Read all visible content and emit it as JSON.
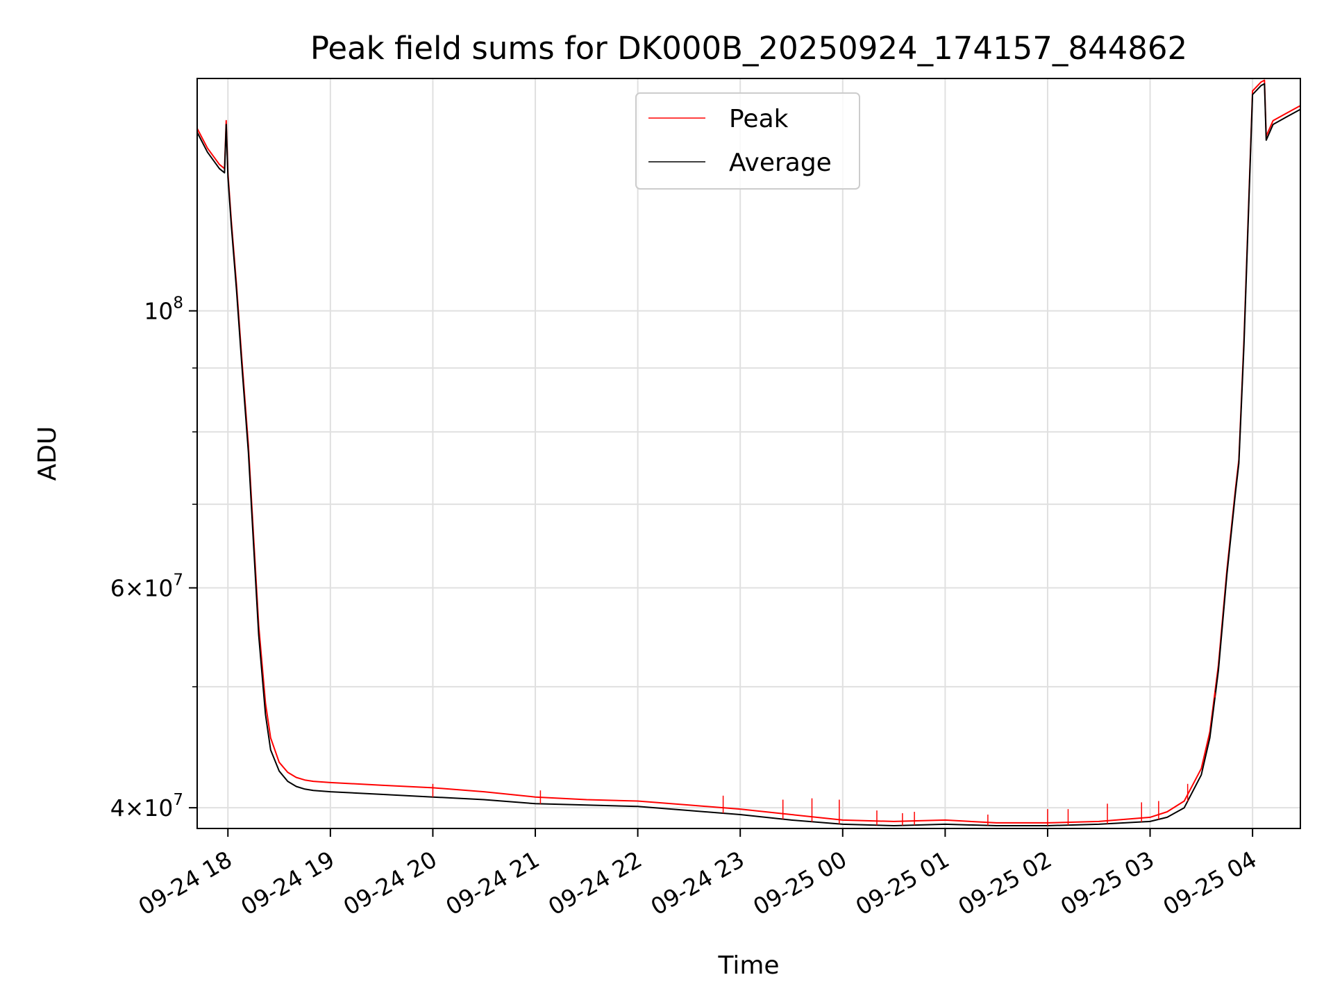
{
  "chart_data": {
    "type": "line",
    "title": "Peak field sums for DK000B_20250924_174157_844862",
    "xlabel": "Time",
    "ylabel": "ADU",
    "yscale": "log",
    "ylim": [
      38500000,
      153500000
    ],
    "xlim": [
      "2025-09-24 17:42",
      "2025-09-25 04:28"
    ],
    "grid": true,
    "legend_position": "upper center",
    "x_ticks": [
      "2025-09-24 18:00",
      "2025-09-24 19:00",
      "2025-09-24 20:00",
      "2025-09-24 21:00",
      "2025-09-24 22:00",
      "2025-09-24 23:00",
      "2025-09-25 00:00",
      "2025-09-25 01:00",
      "2025-09-25 02:00",
      "2025-09-25 03:00",
      "2025-09-25 04:00"
    ],
    "x_tick_labels": [
      "09-24 18",
      "09-24 19",
      "09-24 20",
      "09-24 21",
      "09-24 22",
      "09-24 23",
      "09-25 00",
      "09-25 01",
      "09-25 02",
      "09-25 03",
      "09-25 04"
    ],
    "y_major_ticks": [
      {
        "value": 40000000,
        "mantissa": "4",
        "exp": "7"
      },
      {
        "value": 60000000,
        "mantissa": "6",
        "exp": "7"
      },
      {
        "value": 100000000,
        "mantissa": "",
        "exp": "8"
      }
    ],
    "y_minor_ticks": [
      50000000,
      70000000,
      80000000,
      90000000
    ],
    "series": [
      {
        "name": "Peak",
        "color": "#ff0000",
        "x": [
          "2025-09-24 17:42",
          "2025-09-24 17:48",
          "2025-09-24 17:55",
          "2025-09-24 17:58",
          "2025-09-24 17:59",
          "2025-09-24 18:00",
          "2025-09-24 18:02",
          "2025-09-24 18:05",
          "2025-09-24 18:08",
          "2025-09-24 18:12",
          "2025-09-24 18:15",
          "2025-09-24 18:18",
          "2025-09-24 18:22",
          "2025-09-24 18:25",
          "2025-09-24 18:30",
          "2025-09-24 18:35",
          "2025-09-24 18:40",
          "2025-09-24 18:45",
          "2025-09-24 18:50",
          "2025-09-24 19:00",
          "2025-09-24 19:30",
          "2025-09-24 20:00",
          "2025-09-24 20:30",
          "2025-09-24 21:00",
          "2025-09-24 21:30",
          "2025-09-24 22:00",
          "2025-09-24 22:30",
          "2025-09-24 23:00",
          "2025-09-24 23:30",
          "2025-09-25 00:00",
          "2025-09-25 00:30",
          "2025-09-25 01:00",
          "2025-09-25 01:30",
          "2025-09-25 02:00",
          "2025-09-25 02:30",
          "2025-09-25 03:00",
          "2025-09-25 03:10",
          "2025-09-25 03:20",
          "2025-09-25 03:30",
          "2025-09-25 03:35",
          "2025-09-25 03:40",
          "2025-09-25 03:45",
          "2025-09-25 03:50",
          "2025-09-25 03:52",
          "2025-09-25 03:55",
          "2025-09-25 03:58",
          "2025-09-25 04:00",
          "2025-09-25 04:05",
          "2025-09-25 04:07",
          "2025-09-25 04:08",
          "2025-09-25 04:12",
          "2025-09-25 04:20",
          "2025-09-25 04:28"
        ],
        "y": [
          140000000,
          135000000,
          131000000,
          130000000,
          142000000,
          129000000,
          118000000,
          105000000,
          92000000,
          78000000,
          66000000,
          56000000,
          48500000,
          45500000,
          43500000,
          42700000,
          42300000,
          42100000,
          42000000,
          41900000,
          41700000,
          41500000,
          41200000,
          40800000,
          40600000,
          40500000,
          40200000,
          39900000,
          39500000,
          39100000,
          39000000,
          39100000,
          38900000,
          38900000,
          39000000,
          39300000,
          39700000,
          40500000,
          43000000,
          46000000,
          52000000,
          62000000,
          72000000,
          76000000,
          95000000,
          125000000,
          150000000,
          152500000,
          153000000,
          138000000,
          142000000,
          144000000,
          146000000
        ]
      },
      {
        "name": "Average",
        "color": "#000000",
        "x": [
          "2025-09-24 17:42",
          "2025-09-24 17:48",
          "2025-09-24 17:55",
          "2025-09-24 17:58",
          "2025-09-24 17:59",
          "2025-09-24 18:00",
          "2025-09-24 18:02",
          "2025-09-24 18:05",
          "2025-09-24 18:08",
          "2025-09-24 18:12",
          "2025-09-24 18:15",
          "2025-09-24 18:18",
          "2025-09-24 18:22",
          "2025-09-24 18:25",
          "2025-09-24 18:30",
          "2025-09-24 18:35",
          "2025-09-24 18:40",
          "2025-09-24 18:45",
          "2025-09-24 18:50",
          "2025-09-24 19:00",
          "2025-09-24 19:30",
          "2025-09-24 20:00",
          "2025-09-24 20:30",
          "2025-09-24 21:00",
          "2025-09-24 21:30",
          "2025-09-24 22:00",
          "2025-09-24 22:30",
          "2025-09-24 23:00",
          "2025-09-24 23:30",
          "2025-09-25 00:00",
          "2025-09-25 00:30",
          "2025-09-25 01:00",
          "2025-09-25 01:30",
          "2025-09-25 02:00",
          "2025-09-25 02:30",
          "2025-09-25 03:00",
          "2025-09-25 03:10",
          "2025-09-25 03:20",
          "2025-09-25 03:30",
          "2025-09-25 03:35",
          "2025-09-25 03:40",
          "2025-09-25 03:45",
          "2025-09-25 03:50",
          "2025-09-25 03:52",
          "2025-09-25 03:55",
          "2025-09-25 03:58",
          "2025-09-25 04:00",
          "2025-09-25 04:05",
          "2025-09-25 04:07",
          "2025-09-25 04:08",
          "2025-09-25 04:12",
          "2025-09-25 04:20",
          "2025-09-25 04:28"
        ],
        "y": [
          139000000,
          134000000,
          130000000,
          129000000,
          141000000,
          128000000,
          117000000,
          104000000,
          91000000,
          77000000,
          65000000,
          55000000,
          47500000,
          44500000,
          42800000,
          42000000,
          41600000,
          41400000,
          41300000,
          41200000,
          41000000,
          40800000,
          40600000,
          40300000,
          40200000,
          40100000,
          39800000,
          39500000,
          39100000,
          38800000,
          38700000,
          38800000,
          38700000,
          38700000,
          38800000,
          39000000,
          39300000,
          40000000,
          42500000,
          45500000,
          51500000,
          61500000,
          71500000,
          75500000,
          94000000,
          124000000,
          149000000,
          151500000,
          152000000,
          137000000,
          141000000,
          143000000,
          145000000
        ]
      }
    ],
    "peak_spikes": [
      {
        "x": "2025-09-24 20:00",
        "y": 41800000
      },
      {
        "x": "2025-09-24 21:03",
        "y": 41300000
      },
      {
        "x": "2025-09-24 22:50",
        "y": 40900000
      },
      {
        "x": "2025-09-24 23:25",
        "y": 40600000
      },
      {
        "x": "2025-09-24 23:42",
        "y": 40700000
      },
      {
        "x": "2025-09-24 23:58",
        "y": 40600000
      },
      {
        "x": "2025-09-25 00:20",
        "y": 39800000
      },
      {
        "x": "2025-09-25 00:35",
        "y": 39600000
      },
      {
        "x": "2025-09-25 00:42",
        "y": 39700000
      },
      {
        "x": "2025-09-25 01:25",
        "y": 39500000
      },
      {
        "x": "2025-09-25 02:00",
        "y": 39900000
      },
      {
        "x": "2025-09-25 02:12",
        "y": 39900000
      },
      {
        "x": "2025-09-25 02:35",
        "y": 40300000
      },
      {
        "x": "2025-09-25 02:55",
        "y": 40400000
      },
      {
        "x": "2025-09-25 03:05",
        "y": 40500000
      },
      {
        "x": "2025-09-25 03:22",
        "y": 41800000
      },
      {
        "x": "2025-09-25 03:38",
        "y": 49500000
      }
    ]
  },
  "legend": {
    "peak_label": "Peak",
    "average_label": "Average"
  }
}
